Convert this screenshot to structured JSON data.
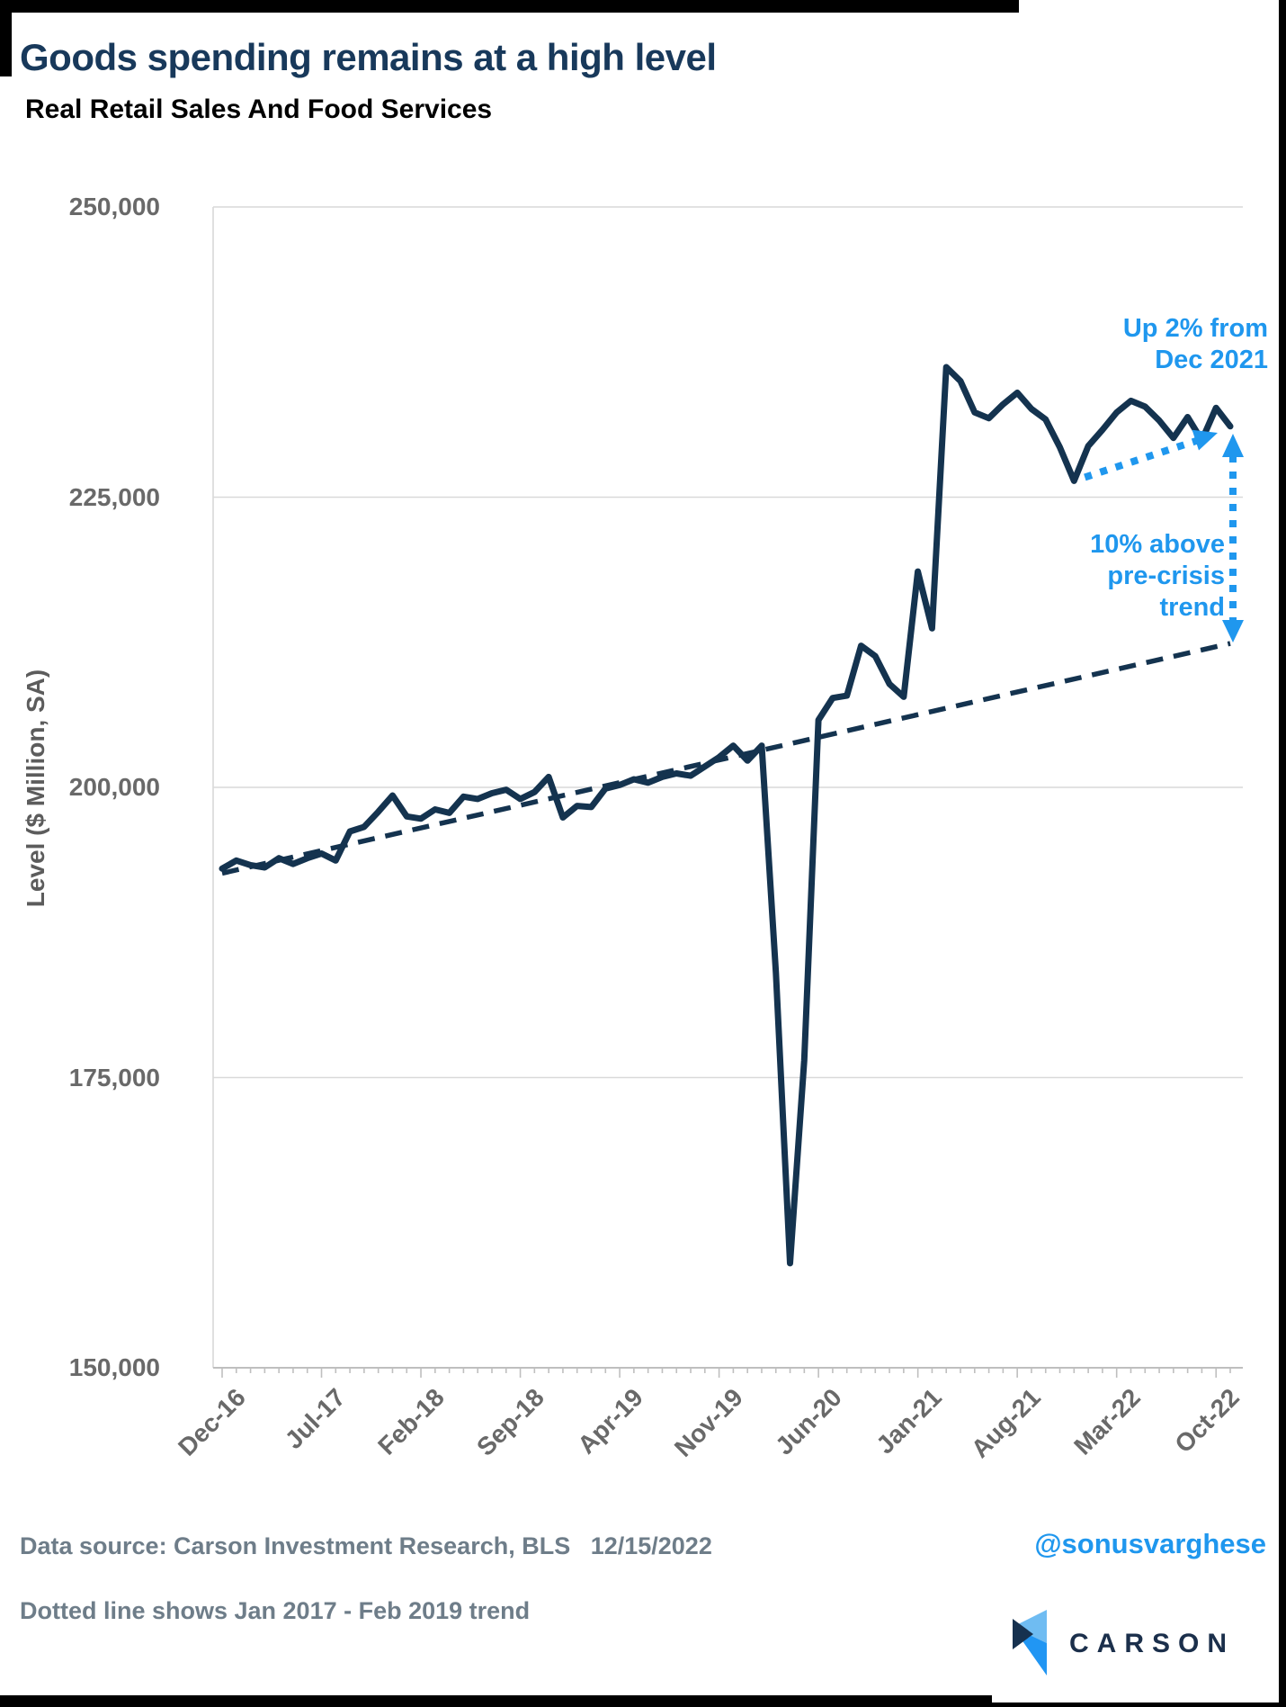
{
  "header": {
    "title": "Goods spending remains at a high level"
  },
  "chart_data": {
    "type": "line",
    "title": "Real Retail Sales And Food Services",
    "ylabel": "Level ($ Million, SA)",
    "ylim": [
      150000,
      250000
    ],
    "grid": "horizontal",
    "y_ticks": [
      {
        "label": "250,000",
        "value": 250000
      },
      {
        "label": "225,000",
        "value": 225000
      },
      {
        "label": "200,000",
        "value": 200000
      },
      {
        "label": "175,000",
        "value": 175000
      },
      {
        "label": "150,000",
        "value": 150000
      }
    ],
    "x_tick_labels": [
      "Dec-16",
      "Jul-17",
      "Feb-18",
      "Sep-18",
      "Apr-19",
      "Nov-19",
      "Jun-20",
      "Jan-21",
      "Aug-21",
      "Mar-22",
      "Oct-22"
    ],
    "x": [
      "Dec-16",
      "Jan-17",
      "Feb-17",
      "Mar-17",
      "Apr-17",
      "May-17",
      "Jun-17",
      "Jul-17",
      "Aug-17",
      "Sep-17",
      "Oct-17",
      "Nov-17",
      "Dec-17",
      "Jan-18",
      "Feb-18",
      "Mar-18",
      "Apr-18",
      "May-18",
      "Jun-18",
      "Jul-18",
      "Aug-18",
      "Sep-18",
      "Oct-18",
      "Nov-18",
      "Dec-18",
      "Jan-19",
      "Feb-19",
      "Mar-19",
      "Apr-19",
      "May-19",
      "Jun-19",
      "Jul-19",
      "Aug-19",
      "Sep-19",
      "Oct-19",
      "Nov-19",
      "Dec-19",
      "Jan-20",
      "Feb-20",
      "Mar-20",
      "Apr-20",
      "May-20",
      "Jun-20",
      "Jul-20",
      "Aug-20",
      "Sep-20",
      "Oct-20",
      "Nov-20",
      "Dec-20",
      "Jan-21",
      "Feb-21",
      "Mar-21",
      "Apr-21",
      "May-21",
      "Jun-21",
      "Jul-21",
      "Aug-21",
      "Sep-21",
      "Oct-21",
      "Nov-21",
      "Dec-21",
      "Jan-22",
      "Feb-22",
      "Mar-22",
      "Apr-22",
      "May-22",
      "Jun-22",
      "Jul-22",
      "Aug-22",
      "Sep-22",
      "Oct-22",
      "Nov-22"
    ],
    "series": [
      {
        "name": "Real Retail Sales And Food Services",
        "style": "solid",
        "values": [
          193000,
          193700,
          193300,
          193100,
          193900,
          193400,
          193900,
          194300,
          193700,
          196200,
          196600,
          197900,
          199300,
          197500,
          197300,
          198100,
          197800,
          199200,
          199000,
          199500,
          199800,
          199000,
          199600,
          200900,
          197400,
          198400,
          198300,
          199900,
          200200,
          200700,
          200400,
          200900,
          201200,
          201000,
          201800,
          202600,
          203600,
          202300,
          203600,
          184000,
          159000,
          176500,
          205800,
          207700,
          207900,
          212200,
          211300,
          208900,
          207800,
          218600,
          213700,
          236200,
          235000,
          232300,
          231800,
          233000,
          234000,
          232600,
          231700,
          229300,
          226400,
          229400,
          230800,
          232300,
          233300,
          232800,
          231600,
          230100,
          231900,
          229900,
          232700,
          231100
        ]
      },
      {
        "name": "Jan 2017 - Feb 2019 trend (extended)",
        "style": "dashed",
        "start_value": 192600,
        "end_value": 212400
      }
    ],
    "annotations": [
      {
        "text": "Up 2% from\nDec 2021"
      },
      {
        "text": "10% above\npre-crisis\ntrend"
      }
    ],
    "colors": {
      "navy": "#14334F",
      "blue": "#1F97EE",
      "grid": "#D9D9D9",
      "axis": "#BFBFBF",
      "tick_text": "#696969"
    }
  },
  "footer": {
    "source": "Data source: Carson Investment Research, BLS   12/15/2022",
    "note": "Dotted line shows Jan 2017 - Feb 2019 trend",
    "handle": "@sonusvarghese"
  },
  "logo": {
    "text": "CARSON",
    "colors": {
      "light_blue": "#6FBCF2",
      "blue": "#2196F3",
      "navy": "#16314F"
    }
  }
}
